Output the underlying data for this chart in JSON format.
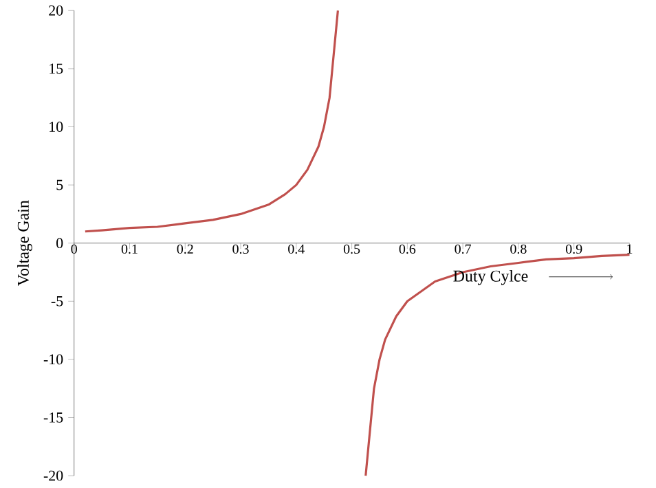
{
  "chart_data": {
    "type": "line",
    "xlabel": "Duty Cylce",
    "ylabel": "Voltage Gain",
    "xlim": [
      0,
      1
    ],
    "ylim": [
      -20,
      20
    ],
    "xticks": [
      0,
      0.1,
      0.2,
      0.3,
      0.4,
      0.5,
      0.6,
      0.7,
      0.8,
      0.9,
      1
    ],
    "yticks": [
      -20,
      -15,
      -10,
      -5,
      0,
      5,
      10,
      15,
      20
    ],
    "grid": false,
    "marker": "none",
    "line_style": "solid",
    "x": [
      0.02,
      0.05,
      0.1,
      0.15,
      0.2,
      0.25,
      0.3,
      0.35,
      0.38,
      0.4,
      0.42,
      0.44,
      0.45,
      0.46,
      0.475,
      0.5,
      0.525,
      0.54,
      0.55,
      0.56,
      0.58,
      0.6,
      0.65,
      0.7,
      0.75,
      0.8,
      0.85,
      0.9,
      0.95,
      1.0
    ],
    "series": [
      {
        "color": "#c0504d",
        "values": [
          1.0,
          1.1,
          1.3,
          1.4,
          1.7,
          2.0,
          2.5,
          3.3,
          4.2,
          5.0,
          6.3,
          8.3,
          10.0,
          12.5,
          20.0,
          null,
          -20.0,
          -12.5,
          -10.0,
          -8.3,
          -6.3,
          -5.0,
          -3.3,
          -2.5,
          -2.0,
          -1.7,
          -1.4,
          -1.3,
          -1.1,
          -1.0
        ]
      }
    ]
  }
}
